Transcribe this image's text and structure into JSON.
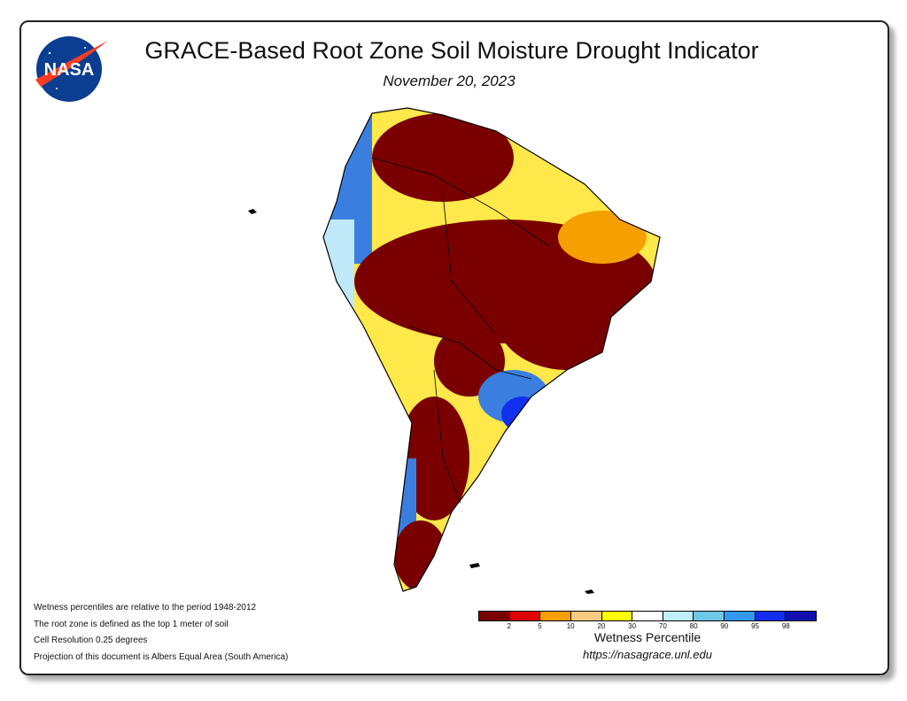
{
  "header": {
    "title": "GRACE-Based Root Zone Soil Moisture Drought Indicator",
    "date": "November 20, 2023",
    "logo_text": "NASA"
  },
  "notes": [
    "Wetness percentiles are relative to the period 1948-2012",
    "The root zone is defined as the top 1 meter of soil",
    "Cell Resolution 0.25 degrees",
    "Projection of this document is Albers Equal Area (South America)"
  ],
  "legend": {
    "title": "Wetness Percentile",
    "colors": [
      "#7a0000",
      "#e00000",
      "#f5a000",
      "#f8cc80",
      "#ffff00",
      "#ffffff",
      "#bff0f8",
      "#70c8e8",
      "#3399ee",
      "#1030ee",
      "#1010b0"
    ],
    "ticks": [
      "2",
      "5",
      "10",
      "20",
      "30",
      "70",
      "80",
      "90",
      "95",
      "98"
    ]
  },
  "footer": {
    "url": "https://nasagrace.unl.edu"
  },
  "map": {
    "region": "South America",
    "dominant_condition": "drought in Amazon basin and Brazil interior"
  }
}
